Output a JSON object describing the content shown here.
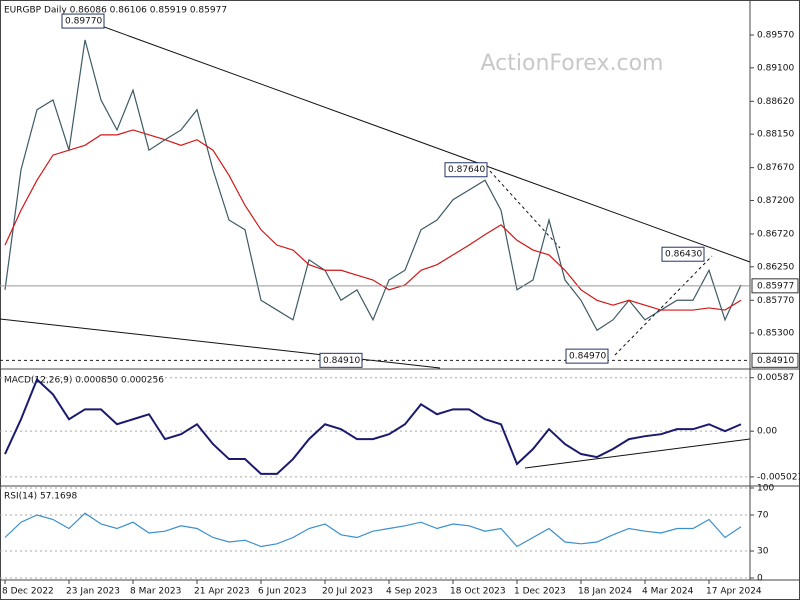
{
  "chart_data": [
    {
      "type": "line",
      "title": "EURGBP Daily 0.86086 0.86106 0.85919 0.85977",
      "watermark": "ActionForex.com",
      "categories": [
        "8 Dec 2022",
        null,
        null,
        null,
        "23 Jan 2023",
        null,
        null,
        null,
        "8 Mar 2023",
        null,
        null,
        null,
        "21 Apr 2023",
        null,
        null,
        null,
        "6 Jun 2023",
        null,
        null,
        null,
        "20 Jul 2023",
        null,
        null,
        null,
        "4 Sep 2023",
        null,
        null,
        null,
        "18 Oct 2023",
        null,
        null,
        null,
        "1 Dec 2023",
        null,
        null,
        null,
        "18 Jan 2024",
        null,
        null,
        null,
        "4 Mar 2024",
        null,
        null,
        null,
        "17 Apr 2024",
        null,
        null
      ],
      "series": [
        {
          "color": "#3d5a66",
          "values": [
            0.8592,
            0.8764,
            0.885,
            0.8864,
            0.8792,
            0.895,
            0.8864,
            0.8821,
            0.8878,
            0.8792,
            0.8807,
            0.8821,
            0.885,
            0.8764,
            0.8692,
            0.8678,
            0.8577,
            0.8563,
            0.8549,
            0.8635,
            0.862,
            0.8577,
            0.8592,
            0.8549,
            0.8606,
            0.862,
            0.8678,
            0.8692,
            0.8721,
            0.8735,
            0.8749,
            0.8706,
            0.8592,
            0.8606,
            0.8692,
            0.8606,
            0.8577,
            0.8534,
            0.8549,
            0.8577,
            0.8549,
            0.8563,
            0.8577,
            0.8577,
            0.862,
            0.8549,
            0.8599
          ]
        },
        {
          "color": "#d01818",
          "values": [
            0.8656,
            0.8706,
            0.8749,
            0.8785,
            0.8792,
            0.8799,
            0.8814,
            0.8814,
            0.8821,
            0.8814,
            0.8807,
            0.8799,
            0.8807,
            0.8792,
            0.8756,
            0.8713,
            0.8678,
            0.8656,
            0.8649,
            0.8628,
            0.862,
            0.862,
            0.8613,
            0.8606,
            0.8592,
            0.8599,
            0.862,
            0.8628,
            0.8642,
            0.8656,
            0.8671,
            0.8685,
            0.8663,
            0.8649,
            0.8642,
            0.862,
            0.8592,
            0.8577,
            0.857,
            0.8577,
            0.857,
            0.8563,
            0.8563,
            0.8563,
            0.8566,
            0.8563,
            0.8577
          ]
        }
      ],
      "ylim": [
        0.848,
        0.9
      ],
      "yticks": [
        {
          "value": 0.8957,
          "label": "0.89570"
        },
        {
          "value": 0.891,
          "label": "0.89100"
        },
        {
          "value": 0.8862,
          "label": "0.88620"
        },
        {
          "value": 0.8815,
          "label": "0.88150"
        },
        {
          "value": 0.8767,
          "label": "0.87670"
        },
        {
          "value": 0.872,
          "label": "0.87200"
        },
        {
          "value": 0.8672,
          "label": "0.86720"
        },
        {
          "value": 0.8625,
          "label": "0.86250"
        },
        {
          "value": 0.8577,
          "label": "0.85770"
        },
        {
          "value": 0.853,
          "label": "0.85300"
        }
      ],
      "last_price": 0.85977,
      "support": {
        "value": 0.8491,
        "label": "0.84910"
      },
      "annotations": [
        {
          "value": 0.8977,
          "label": "0.89770"
        },
        {
          "value": 0.8764,
          "label": "0.87640"
        },
        {
          "value": 0.8643,
          "label": "0.86430"
        },
        {
          "value": 0.8491,
          "label": "0.84910"
        },
        {
          "value": 0.8497,
          "label": "0.84970"
        }
      ]
    },
    {
      "type": "line",
      "title": "MACD(12,26,9) 0.000850 0.000256",
      "series": [
        {
          "color": "#1a1a6e",
          "values": [
            -0.00251,
            0.00131,
            0.00568,
            0.00404,
            0.00131,
            0.0024,
            0.0024,
            0.00076,
            0.00131,
            0.00186,
            -0.00087,
            -0.00033,
            0.00076,
            -0.00142,
            -0.00306,
            -0.00306,
            -0.00469,
            -0.00469,
            -0.00306,
            -0.00087,
            0.00076,
            0.00022,
            -0.00087,
            -0.00087,
            -0.00033,
            0.00076,
            0.00295,
            0.00186,
            0.0024,
            0.0024,
            0.00131,
            0.00076,
            -0.0036,
            -0.00196,
            0.00022,
            -0.00142,
            -0.00251,
            -0.00284,
            -0.00196,
            -0.00087,
            -0.00055,
            -0.00033,
            0.00022,
            0.00022,
            0.00076,
            0,
            0.00076
          ]
        }
      ],
      "ylim": [
        -0.0058,
        0.0065
      ],
      "yticks": [
        0.00587,
        {
          "value": 0,
          "label": "0.00"
        },
        -0.005021
      ]
    },
    {
      "type": "line",
      "title": "RSI(14) 57.1698",
      "series": [
        {
          "color": "#3a8fd0",
          "values": [
            45,
            62,
            70,
            65,
            55,
            72,
            60,
            55,
            62,
            50,
            52,
            58,
            55,
            45,
            40,
            42,
            35,
            38,
            45,
            55,
            60,
            48,
            45,
            52,
            55,
            58,
            62,
            55,
            60,
            58,
            52,
            55,
            35,
            45,
            55,
            40,
            38,
            40,
            48,
            55,
            52,
            50,
            55,
            55,
            65,
            45,
            57
          ]
        }
      ],
      "ylim": [
        0,
        100
      ],
      "yticks": [
        100,
        70,
        30,
        0
      ]
    }
  ]
}
